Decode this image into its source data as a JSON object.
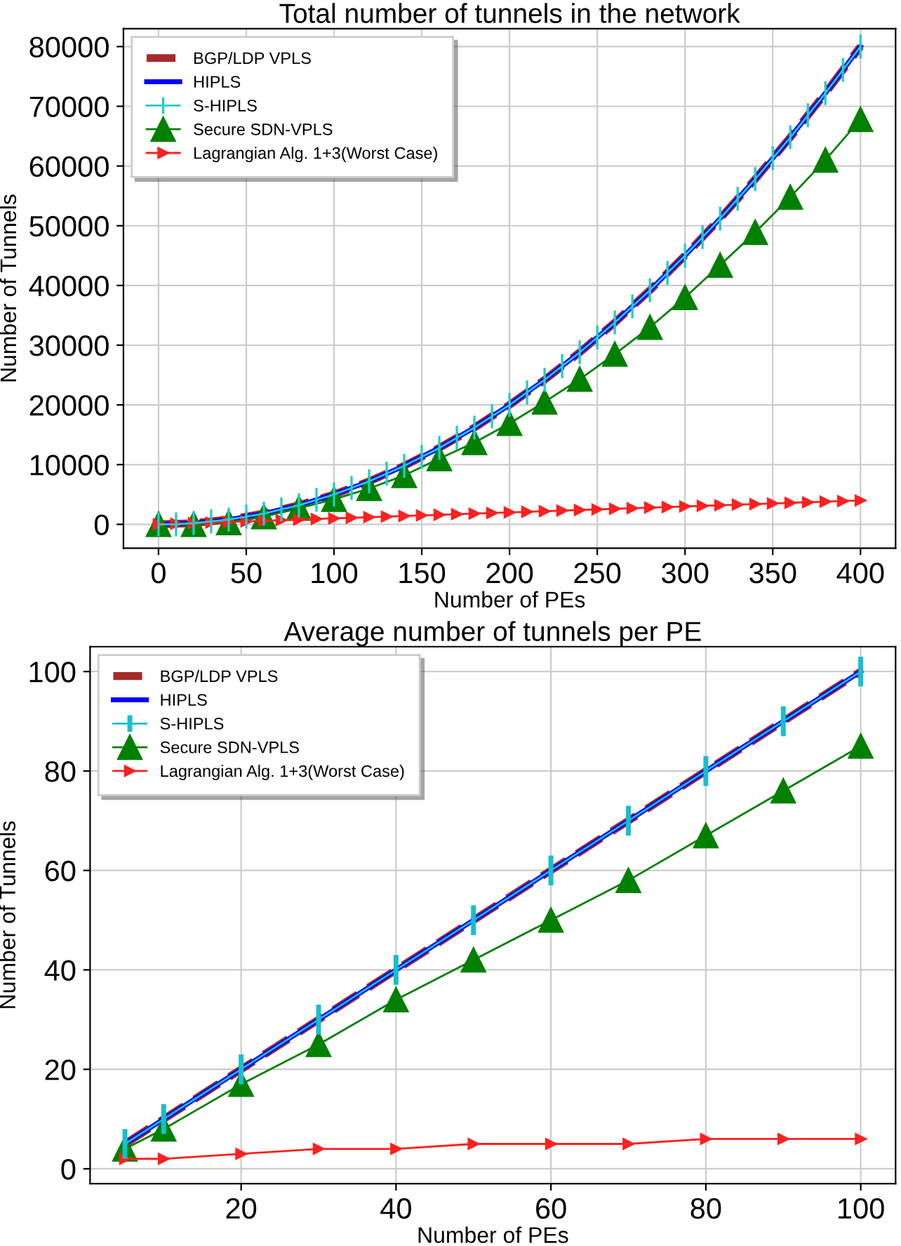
{
  "chart_data": [
    {
      "type": "line",
      "title": "Total number of tunnels in the network",
      "xlabel": "Number of PEs",
      "ylabel": "Number of Tunnels",
      "xlim": [
        -20,
        420
      ],
      "ylim": [
        -4000,
        83000
      ],
      "xticks": [
        0,
        50,
        100,
        150,
        200,
        250,
        300,
        350,
        400
      ],
      "yticks": [
        0,
        10000,
        20000,
        30000,
        40000,
        50000,
        60000,
        70000,
        80000
      ],
      "grid": true,
      "legend": "top left",
      "series": [
        {
          "name": "BGP/LDP VPLS",
          "color": "#a52a2a",
          "line_style": "dashed",
          "marker": "none",
          "x": [
            0,
            20,
            40,
            60,
            80,
            100,
            120,
            140,
            160,
            180,
            200,
            220,
            240,
            260,
            280,
            300,
            320,
            340,
            360,
            380,
            400
          ],
          "values": [
            0,
            200,
            800,
            1800,
            3200,
            5000,
            7200,
            9800,
            12800,
            16200,
            20000,
            24200,
            28800,
            33800,
            39200,
            45000,
            51200,
            57800,
            64800,
            72200,
            80000
          ]
        },
        {
          "name": "HIPLS",
          "color": "#0000ff",
          "line_style": "solid",
          "marker": "none",
          "x": [
            0,
            20,
            40,
            60,
            80,
            100,
            120,
            140,
            160,
            180,
            200,
            220,
            240,
            260,
            280,
            300,
            320,
            340,
            360,
            380,
            400
          ],
          "values": [
            0,
            200,
            800,
            1800,
            3200,
            5000,
            7200,
            9800,
            12800,
            16200,
            20000,
            24200,
            28800,
            33800,
            39200,
            45000,
            51200,
            57800,
            64800,
            72200,
            80000
          ]
        },
        {
          "name": "S-HIPLS",
          "color": "#22cccc",
          "line_style": "solid",
          "marker": "none",
          "errors": [
            2000,
            2000,
            2000,
            2000,
            2000,
            2000,
            2000,
            2000,
            2000,
            2000,
            2000,
            2000,
            2000,
            2000,
            2000,
            2000,
            2000,
            2000,
            2000,
            2000,
            2000,
            2000,
            2000,
            2000,
            2000,
            2000,
            2000,
            2000,
            2000,
            2000,
            2000,
            2000,
            2000,
            2000,
            2000,
            2000,
            2000,
            2000,
            2000,
            2000,
            2000
          ],
          "x": [
            0,
            10,
            20,
            30,
            40,
            50,
            60,
            70,
            80,
            90,
            100,
            110,
            120,
            130,
            140,
            150,
            160,
            170,
            180,
            190,
            200,
            210,
            220,
            230,
            240,
            250,
            260,
            270,
            280,
            290,
            300,
            310,
            320,
            330,
            340,
            350,
            360,
            370,
            380,
            390,
            400
          ],
          "values": [
            0,
            0,
            200,
            500,
            800,
            1300,
            1800,
            2500,
            3200,
            4100,
            5000,
            6100,
            7200,
            8500,
            9800,
            11300,
            12800,
            14500,
            16200,
            18100,
            20000,
            22100,
            24200,
            26500,
            28800,
            31300,
            33800,
            36500,
            39200,
            42100,
            45000,
            48100,
            51200,
            54500,
            57800,
            61300,
            64800,
            68500,
            72200,
            76100,
            80000
          ]
        },
        {
          "name": "Secure SDN-VPLS",
          "color": "#008000",
          "line_style": "solid",
          "marker": "triangle",
          "x": [
            0,
            20,
            40,
            60,
            80,
            100,
            120,
            140,
            160,
            180,
            200,
            220,
            240,
            260,
            280,
            300,
            320,
            340,
            360,
            380,
            400
          ],
          "values": [
            0,
            0,
            300,
            1300,
            2700,
            4200,
            6000,
            8200,
            11000,
            13700,
            16900,
            20500,
            24300,
            28500,
            33000,
            38000,
            43400,
            48900,
            54800,
            61000,
            67800
          ]
        },
        {
          "name": "Lagrangian Alg. 1+3(Worst Case)",
          "color": "#ff2020",
          "line_style": "solid",
          "marker": "triangle_right",
          "x": [
            0,
            10,
            20,
            30,
            40,
            50,
            60,
            70,
            80,
            90,
            100,
            110,
            120,
            130,
            140,
            150,
            160,
            170,
            180,
            190,
            200,
            210,
            220,
            230,
            240,
            250,
            260,
            270,
            280,
            290,
            300,
            310,
            320,
            330,
            340,
            350,
            360,
            370,
            380,
            390,
            400
          ],
          "values": [
            0,
            100,
            200,
            300,
            400,
            500,
            600,
            700,
            800,
            900,
            1000,
            1100,
            1200,
            1300,
            1400,
            1500,
            1600,
            1700,
            1800,
            1900,
            2000,
            2100,
            2200,
            2300,
            2400,
            2500,
            2600,
            2700,
            2800,
            2900,
            3000,
            3100,
            3200,
            3300,
            3400,
            3500,
            3600,
            3700,
            3800,
            3900,
            4000
          ]
        }
      ]
    },
    {
      "type": "line",
      "title": "Average number of tunnels per PE",
      "xlabel": "Number of PEs",
      "ylabel": "Number of Tunnels",
      "xlim": [
        0.5,
        104.5
      ],
      "ylim": [
        -3,
        105
      ],
      "xticks": [
        20,
        40,
        60,
        80,
        100
      ],
      "yticks": [
        0,
        20,
        40,
        60,
        80,
        100
      ],
      "grid": true,
      "legend": "top left",
      "series": [
        {
          "name": "BGP/LDP VPLS",
          "color": "#a52a2a",
          "line_style": "dashed",
          "marker": "none",
          "x": [
            5,
            10,
            20,
            30,
            40,
            50,
            60,
            70,
            80,
            90,
            100
          ],
          "values": [
            5,
            10,
            20,
            30,
            40,
            50,
            60,
            70,
            80,
            90,
            100
          ]
        },
        {
          "name": "HIPLS",
          "color": "#0000ff",
          "line_style": "solid",
          "marker": "none",
          "x": [
            5,
            10,
            20,
            30,
            40,
            50,
            60,
            70,
            80,
            90,
            100
          ],
          "values": [
            5,
            10,
            20,
            30,
            40,
            50,
            60,
            70,
            80,
            90,
            100
          ]
        },
        {
          "name": "S-HIPLS",
          "color": "#17becf",
          "line_style": "solid",
          "marker": "none",
          "errors": [
            3,
            3,
            3,
            3,
            3,
            3,
            3,
            3,
            3,
            3,
            3
          ],
          "x": [
            5,
            10,
            20,
            30,
            40,
            50,
            60,
            70,
            80,
            90,
            100
          ],
          "values": [
            5,
            10,
            20,
            30,
            40,
            50,
            60,
            70,
            80,
            90,
            100
          ]
        },
        {
          "name": "Secure SDN-VPLS",
          "color": "#008000",
          "line_style": "solid",
          "marker": "triangle",
          "x": [
            5,
            10,
            20,
            30,
            40,
            50,
            60,
            70,
            80,
            90,
            100
          ],
          "values": [
            4,
            8,
            17,
            25,
            34,
            42,
            50,
            58,
            67,
            76,
            85
          ]
        },
        {
          "name": "Lagrangian Alg. 1+3(Worst Case)",
          "color": "#ff2020",
          "line_style": "solid",
          "marker": "triangle_right",
          "x": [
            5,
            10,
            20,
            30,
            40,
            50,
            60,
            70,
            80,
            90,
            100
          ],
          "values": [
            2,
            2,
            3,
            4,
            4,
            5,
            5,
            5,
            6,
            6,
            6
          ]
        }
      ]
    }
  ]
}
